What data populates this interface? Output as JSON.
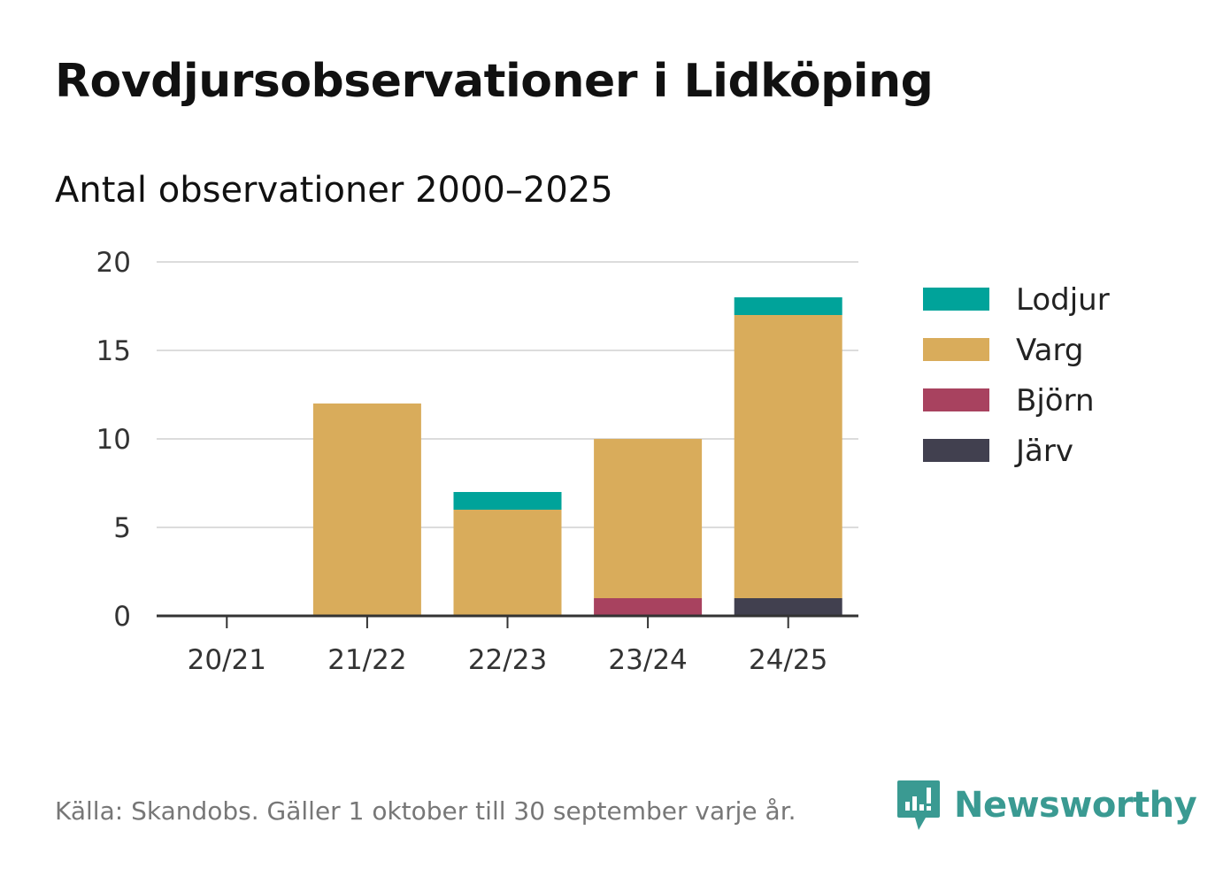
{
  "title": "Rovdjursobservationer i Lidköping",
  "subtitle": "Antal observationer 2000–2025",
  "footer": "Källa: Skandobs. Gäller 1 oktober till 30 september varje år.",
  "brand": {
    "name": "Newsworthy",
    "color": "#3a9a92"
  },
  "chart_data": {
    "type": "bar",
    "stacked": true,
    "title": "Rovdjursobservationer i Lidköping",
    "subtitle": "Antal observationer 2000–2025",
    "xlabel": "",
    "ylabel": "",
    "ylim": [
      0,
      20
    ],
    "yticks": [
      "0",
      "5",
      "10",
      "15",
      "20"
    ],
    "grid": true,
    "legend_position": "right",
    "categories": [
      "20/21",
      "21/22",
      "22/23",
      "23/24",
      "24/25"
    ],
    "series": [
      {
        "name": "Järv",
        "color": "#41404f",
        "values": [
          0,
          0,
          0,
          0,
          1
        ]
      },
      {
        "name": "Björn",
        "color": "#a8425f",
        "values": [
          0,
          0,
          0,
          1,
          0
        ]
      },
      {
        "name": "Varg",
        "color": "#d9ac5b",
        "values": [
          0,
          12,
          6,
          9,
          16
        ]
      },
      {
        "name": "Lodjur",
        "color": "#00a39a",
        "values": [
          0,
          0,
          1,
          0,
          1
        ]
      }
    ],
    "legend_order": [
      "Lodjur",
      "Varg",
      "Björn",
      "Järv"
    ]
  }
}
